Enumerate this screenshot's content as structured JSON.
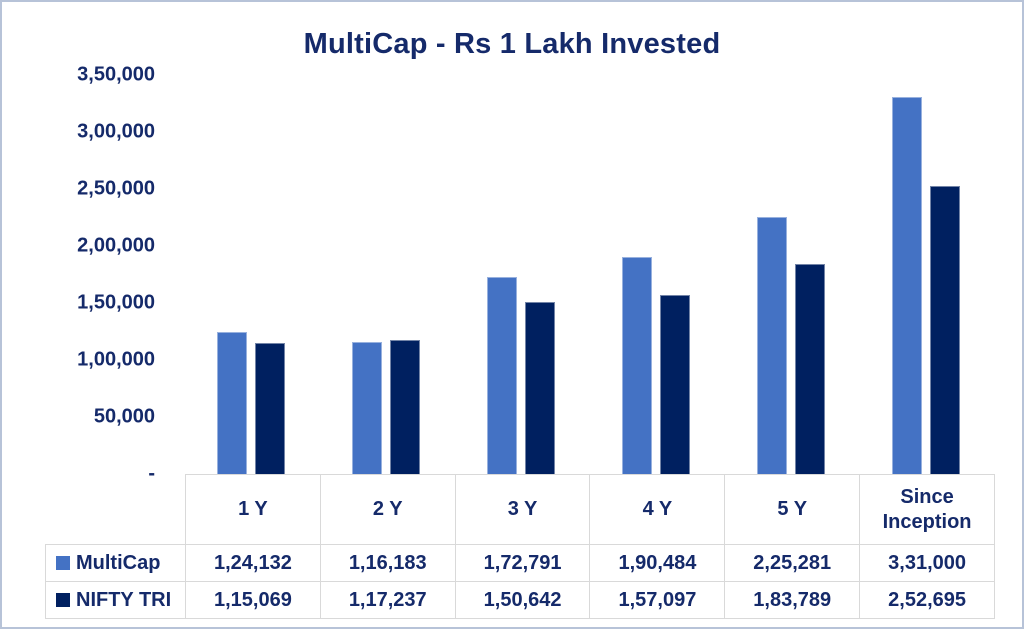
{
  "chart_data": {
    "type": "bar",
    "title": "MultiCap - Rs 1 Lakh Invested",
    "categories": [
      "1 Y",
      "2 Y",
      "3 Y",
      "4 Y",
      "5 Y",
      "Since Inception"
    ],
    "series": [
      {
        "name": "MultiCap",
        "color": "#4472C4",
        "values": [
          124132,
          116183,
          172791,
          190484,
          225281,
          331000
        ],
        "labels": [
          "1,24,132",
          "1,16,183",
          "1,72,791",
          "1,90,484",
          "2,25,281",
          "3,31,000"
        ]
      },
      {
        "name": "NIFTY TRI",
        "color": "#002060",
        "values": [
          115069,
          117237,
          150642,
          157097,
          183789,
          252695
        ],
        "labels": [
          "1,15,069",
          "1,17,237",
          "1,50,642",
          "1,57,097",
          "1,83,789",
          "2,52,695"
        ]
      }
    ],
    "ylim": [
      0,
      350000
    ],
    "y_ticks": [
      {
        "value": 350000,
        "label": "3,50,000"
      },
      {
        "value": 300000,
        "label": "3,00,000"
      },
      {
        "value": 250000,
        "label": "2,50,000"
      },
      {
        "value": 200000,
        "label": "2,00,000"
      },
      {
        "value": 150000,
        "label": "1,50,000"
      },
      {
        "value": 100000,
        "label": "1,00,000"
      },
      {
        "value": 50000,
        "label": "50,000"
      },
      {
        "value": 0,
        "label": "-"
      }
    ],
    "grid": false,
    "legend_position": "table-left",
    "colors": {
      "text": "#152a6a",
      "series_1": "#4472C4",
      "series_2": "#002060",
      "table_border": "#d9d9d9",
      "frame_border": "#b7c3d8"
    }
  }
}
